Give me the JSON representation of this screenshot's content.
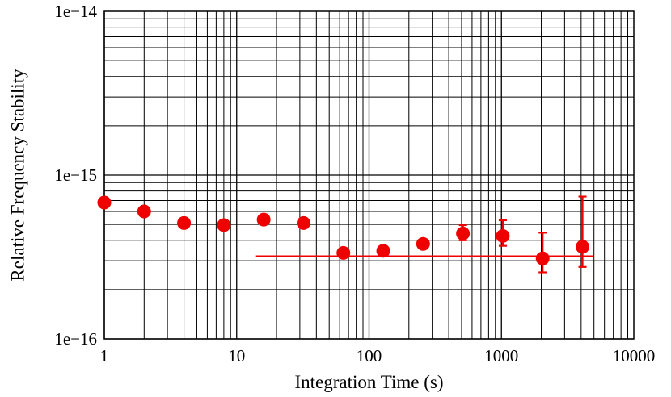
{
  "chart_data": {
    "type": "scatter",
    "xlabel": "Integration Time (s)",
    "ylabel": "Relative Frequency Stability",
    "x_scale": "log",
    "y_scale": "log",
    "xlim": [
      1,
      10000
    ],
    "ylim": [
      1e-16,
      1e-14
    ],
    "grid": true,
    "x_tick_values": [
      1,
      10,
      100,
      1000,
      10000
    ],
    "x_tick_labels": [
      "1",
      "10",
      "100",
      "1000",
      "10000"
    ],
    "y_tick_values": [
      1e-16,
      1e-15,
      1e-14
    ],
    "y_tick_labels": [
      "1e−16",
      "1e−15",
      "1e−14"
    ],
    "colors": {
      "series": "#ee0000",
      "grid": "#000000"
    },
    "series": [
      {
        "x": [
          1,
          2,
          4,
          8,
          16,
          32,
          64,
          128,
          256,
          512,
          1024,
          2048,
          4096
        ],
        "y": [
          6.8e-16,
          6e-16,
          5.1e-16,
          4.95e-16,
          5.35e-16,
          5.1e-16,
          3.35e-16,
          3.45e-16,
          3.8e-16,
          4.4e-16,
          4.25e-16,
          3.1e-16,
          3.65e-16
        ],
        "yerr_low": [
          null,
          null,
          null,
          null,
          null,
          null,
          null,
          null,
          null,
          4e-16,
          3.7e-16,
          2.55e-16,
          2.75e-16
        ],
        "yerr_high": [
          null,
          null,
          null,
          null,
          null,
          null,
          null,
          null,
          null,
          4.95e-16,
          5.3e-16,
          4.45e-16,
          7.4e-16
        ]
      }
    ],
    "reference_line": {
      "y": 3.2e-16,
      "x_range": [
        14,
        5000
      ]
    }
  }
}
